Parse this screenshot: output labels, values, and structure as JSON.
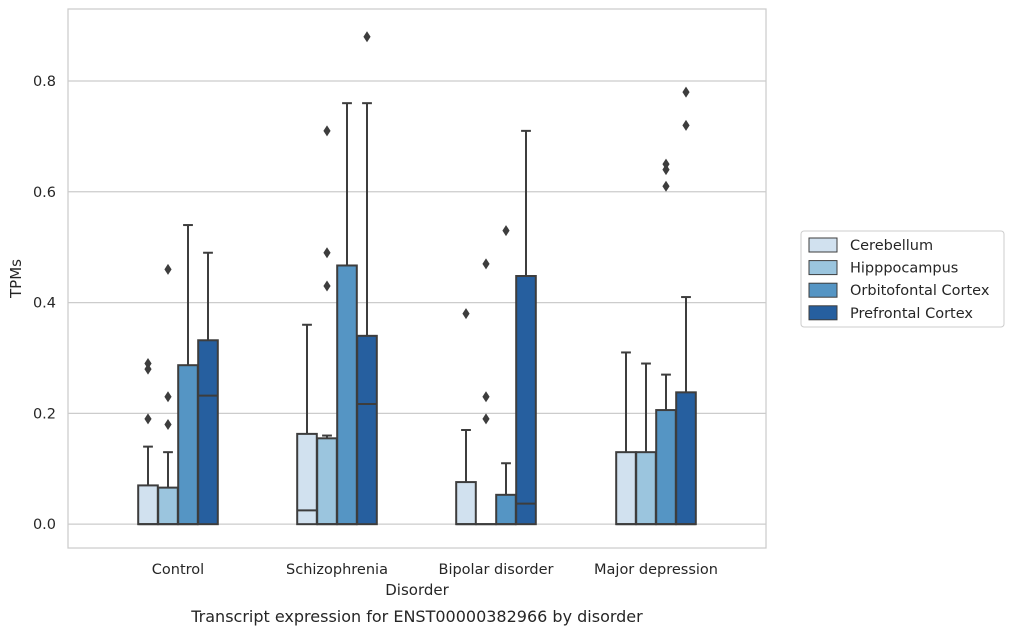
{
  "chart_data": {
    "type": "boxplot",
    "title": "",
    "caption": "Transcript expression for ENST00000382966 by disorder",
    "xlabel": "Disorder",
    "ylabel": "TPMs",
    "ylim": [
      -0.043,
      0.93
    ],
    "yticks": [
      0.0,
      0.2,
      0.4,
      0.6,
      0.8
    ],
    "ytick_labels": [
      "0.0",
      "0.2",
      "0.4",
      "0.6",
      "0.8"
    ],
    "grid": "horizontal",
    "legend_position": "right",
    "categories": [
      "Control",
      "Schizophrenia",
      "Bipolar disorder",
      "Major depression"
    ],
    "series": [
      {
        "name": "Cerebellum",
        "color": "#d1e1ef",
        "boxes": [
          {
            "q1": 0.0,
            "median": 0.0,
            "q3": 0.07,
            "whisker_low": 0.0,
            "whisker_high": 0.14,
            "outliers": [
              0.19,
              0.28,
              0.29
            ]
          },
          {
            "q1": 0.0,
            "median": 0.025,
            "q3": 0.163,
            "whisker_low": 0.0,
            "whisker_high": 0.36,
            "outliers": []
          },
          {
            "q1": 0.0,
            "median": 0.0,
            "q3": 0.076,
            "whisker_low": 0.0,
            "whisker_high": 0.17,
            "outliers": [
              0.38
            ]
          },
          {
            "q1": 0.0,
            "median": 0.0,
            "q3": 0.13,
            "whisker_low": 0.0,
            "whisker_high": 0.31,
            "outliers": []
          }
        ]
      },
      {
        "name": "Hipppocampus",
        "color": "#9bc5de",
        "boxes": [
          {
            "q1": 0.0,
            "median": 0.0,
            "q3": 0.066,
            "whisker_low": 0.0,
            "whisker_high": 0.13,
            "outliers": [
              0.18,
              0.23,
              0.46
            ]
          },
          {
            "q1": 0.0,
            "median": 0.0,
            "q3": 0.155,
            "whisker_low": 0.0,
            "whisker_high": 0.16,
            "outliers": [
              0.43,
              0.49,
              0.71
            ]
          },
          {
            "q1": 0.0,
            "median": 0.0,
            "q3": 0.0,
            "whisker_low": 0.0,
            "whisker_high": 0.0,
            "outliers": [
              0.19,
              0.23,
              0.47
            ]
          },
          {
            "q1": 0.0,
            "median": 0.0,
            "q3": 0.13,
            "whisker_low": 0.0,
            "whisker_high": 0.29,
            "outliers": []
          }
        ]
      },
      {
        "name": "Orbitofontal Cortex",
        "color": "#5595c4",
        "boxes": [
          {
            "q1": 0.0,
            "median": 0.0,
            "q3": 0.287,
            "whisker_low": 0.0,
            "whisker_high": 0.54,
            "outliers": []
          },
          {
            "q1": 0.0,
            "median": 0.0,
            "q3": 0.467,
            "whisker_low": 0.0,
            "whisker_high": 0.76,
            "outliers": []
          },
          {
            "q1": 0.0,
            "median": 0.0,
            "q3": 0.053,
            "whisker_low": 0.0,
            "whisker_high": 0.11,
            "outliers": [
              0.53
            ]
          },
          {
            "q1": 0.0,
            "median": 0.0,
            "q3": 0.206,
            "whisker_low": 0.0,
            "whisker_high": 0.27,
            "outliers": [
              0.61,
              0.64,
              0.65
            ]
          }
        ]
      },
      {
        "name": "Prefrontal Cortex",
        "color": "#265f9f",
        "boxes": [
          {
            "q1": 0.0,
            "median": 0.232,
            "q3": 0.332,
            "whisker_low": 0.0,
            "whisker_high": 0.49,
            "outliers": []
          },
          {
            "q1": 0.0,
            "median": 0.217,
            "q3": 0.34,
            "whisker_low": 0.0,
            "whisker_high": 0.76,
            "outliers": [
              0.88
            ]
          },
          {
            "q1": 0.0,
            "median": 0.037,
            "q3": 0.448,
            "whisker_low": 0.0,
            "whisker_high": 0.71,
            "outliers": []
          },
          {
            "q1": 0.0,
            "median": 0.0,
            "q3": 0.238,
            "whisker_low": 0.0,
            "whisker_high": 0.41,
            "outliers": [
              0.72,
              0.78
            ]
          }
        ]
      }
    ]
  }
}
